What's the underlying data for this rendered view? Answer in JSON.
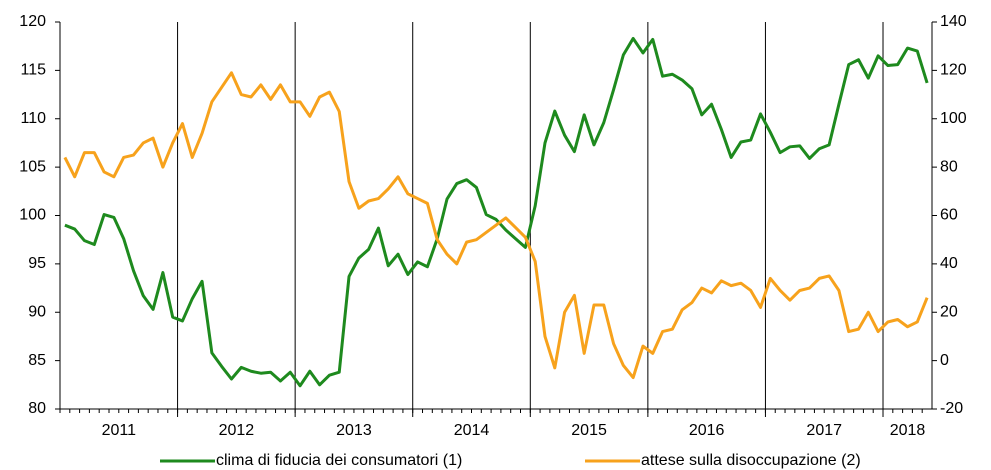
{
  "chart_data": {
    "type": "line",
    "categories": [
      "2011",
      null,
      null,
      null,
      null,
      null,
      null,
      null,
      null,
      null,
      null,
      null,
      "2012",
      null,
      null,
      null,
      null,
      null,
      null,
      null,
      null,
      null,
      null,
      null,
      "2013",
      null,
      null,
      null,
      null,
      null,
      null,
      null,
      null,
      null,
      null,
      null,
      "2014",
      null,
      null,
      null,
      null,
      null,
      null,
      null,
      null,
      null,
      null,
      null,
      "2015",
      null,
      null,
      null,
      null,
      null,
      null,
      null,
      null,
      null,
      null,
      null,
      "2016",
      null,
      null,
      null,
      null,
      null,
      null,
      null,
      null,
      null,
      null,
      null,
      "2017",
      null,
      null,
      null,
      null,
      null,
      null,
      null,
      null,
      null,
      null,
      null,
      "2018",
      null,
      null,
      null,
      null
    ],
    "series": [
      {
        "name": "clima di fiducia dei consumatori (1)",
        "color": "#1e8a1e",
        "axis": "y",
        "values": [
          99,
          98.6,
          97.4,
          97,
          100.1,
          99.8,
          97.6,
          94.3,
          91.7,
          90.3,
          94.1,
          89.5,
          89.1,
          91.4,
          93.2,
          85.8,
          84.4,
          83.1,
          84.3,
          83.9,
          83.7,
          83.8,
          82.9,
          83.8,
          82.4,
          83.9,
          82.5,
          83.5,
          83.8,
          93.7,
          95.6,
          96.5,
          98.7,
          94.8,
          96,
          93.9,
          95.2,
          94.7,
          97.6,
          101.7,
          103.3,
          103.7,
          102.9,
          100.1,
          99.6,
          98.5,
          97.6,
          96.7,
          101,
          107.5,
          110.8,
          108.3,
          106.6,
          110.4,
          107.3,
          109.6,
          113,
          116.6,
          118.3,
          116.8,
          118.2,
          114.4,
          114.6,
          114,
          113.1,
          110.4,
          111.5,
          108.9,
          106,
          107.6,
          107.8,
          110.5,
          108.6,
          106.5,
          107.1,
          107.2,
          105.9,
          106.9,
          107.3,
          111.5,
          115.6,
          116.1,
          114.2,
          116.5,
          115.5,
          115.6,
          117.3,
          117,
          113.7
        ]
      },
      {
        "name": "attese sulla disoccupazione (2)",
        "color": "#f7a21c",
        "axis": "y2",
        "values": [
          84,
          76,
          86,
          86,
          78,
          76,
          84,
          85,
          90,
          92,
          80,
          90,
          98,
          84,
          94,
          107,
          113,
          119,
          110,
          109,
          114,
          108,
          114,
          107,
          107,
          101,
          109,
          111,
          103,
          74,
          63,
          66,
          67,
          71,
          76,
          69,
          67,
          65,
          50,
          44,
          40,
          49,
          50,
          53,
          56,
          59,
          55,
          51,
          41,
          10,
          -3,
          20,
          27,
          3,
          23,
          23,
          7,
          -2,
          -7,
          6,
          3,
          12,
          13,
          21,
          24,
          30,
          28,
          33,
          31,
          32,
          29,
          22,
          34,
          29,
          25,
          29,
          30,
          34,
          35,
          29,
          12,
          13,
          20,
          12,
          16,
          17,
          14,
          16,
          26
        ]
      }
    ],
    "ylim": [
      80,
      120
    ],
    "yticks": [
      80,
      85,
      90,
      95,
      100,
      105,
      110,
      115,
      120
    ],
    "y2lim": [
      -20,
      140
    ],
    "y2ticks": [
      -20,
      0,
      20,
      40,
      60,
      80,
      100,
      120,
      140
    ],
    "grid": false,
    "legend": "bottom"
  }
}
